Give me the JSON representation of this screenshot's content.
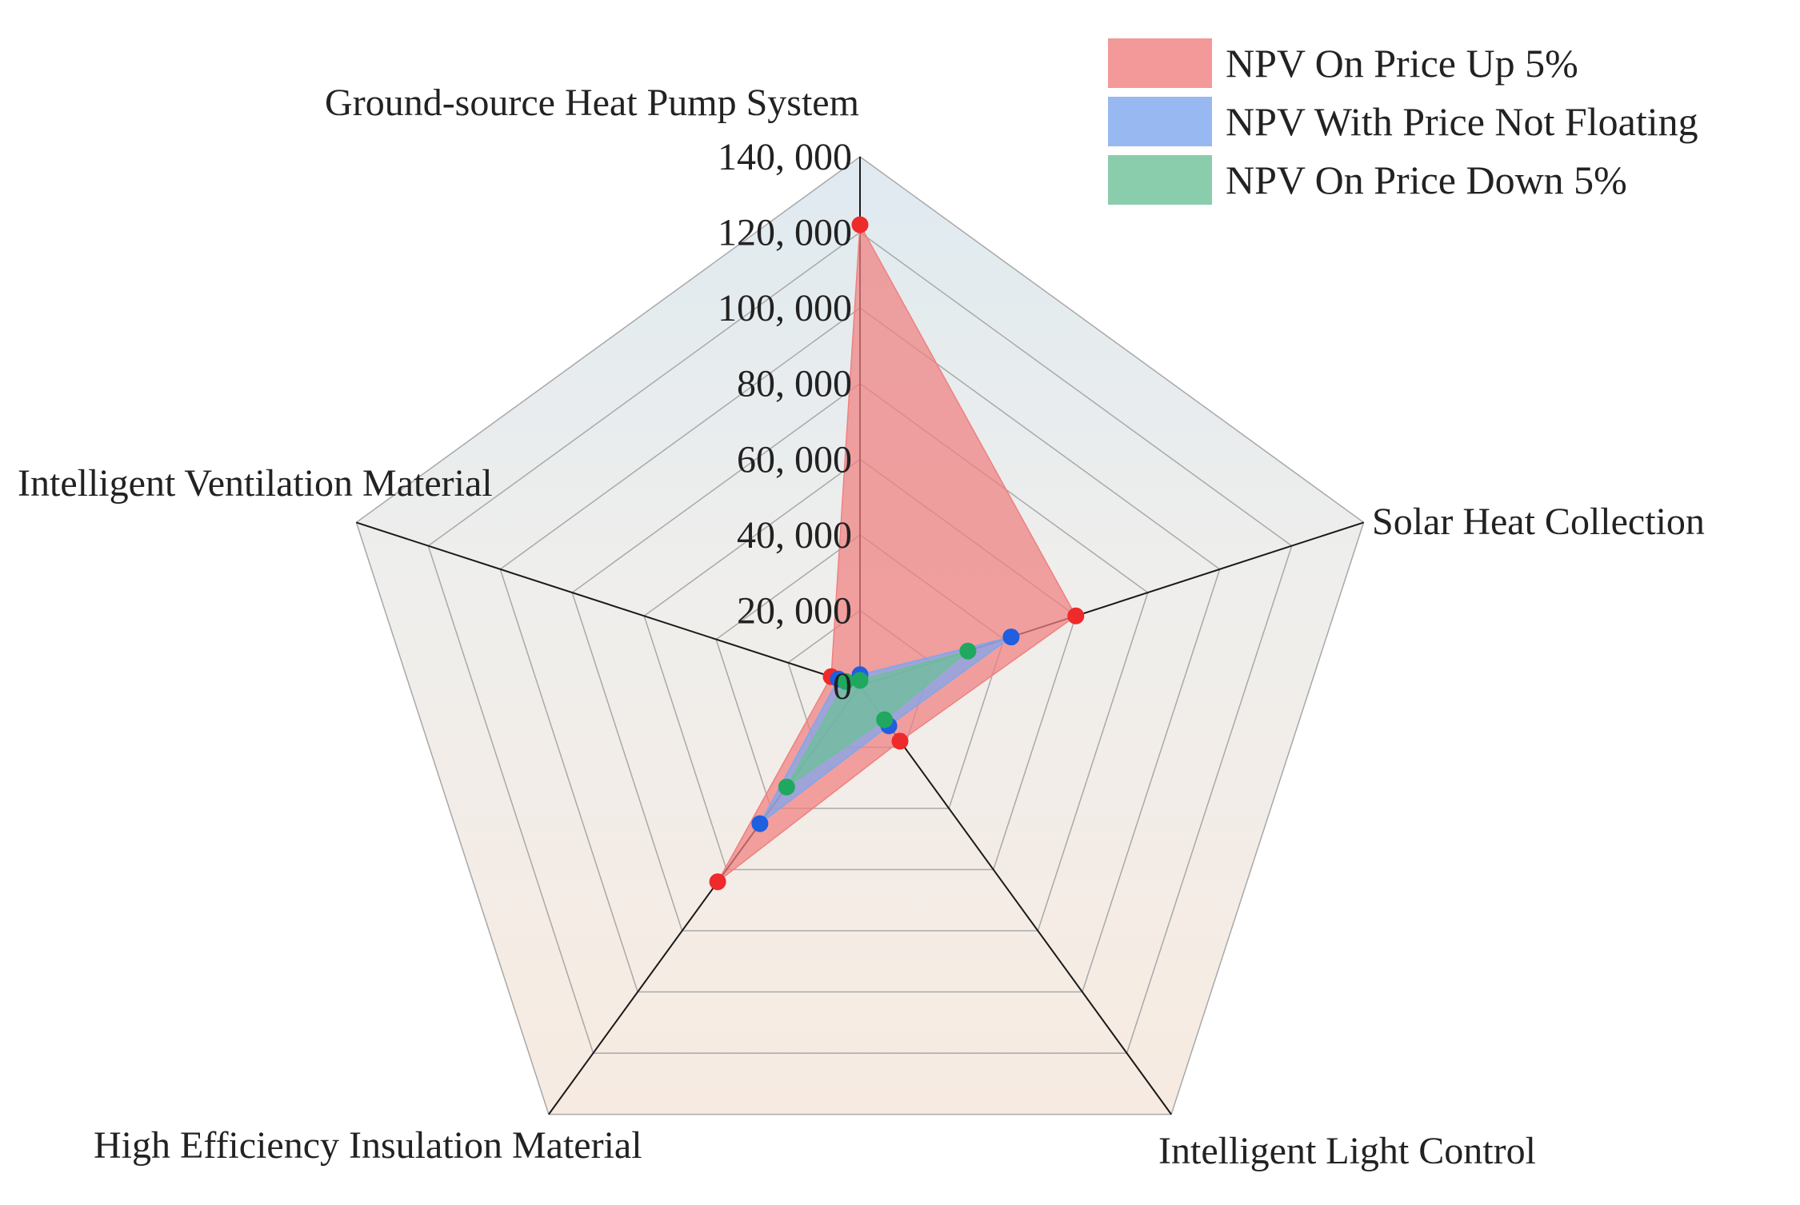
{
  "chart_data": {
    "type": "radar",
    "axes": [
      "Ground-source Heat Pump System",
      "Solar Heat Collection",
      "Intelligent Light Control",
      "High Efficiency Insulation Material",
      "Intelligent Ventilation Material"
    ],
    "radial_ticks": [
      "0",
      "20, 000",
      "40, 000",
      "60, 000",
      "80, 000",
      "100, 000",
      "120, 000",
      "140, 000"
    ],
    "radial_range": [
      0,
      140000
    ],
    "grid": true,
    "legend_position": "top-right",
    "series": [
      {
        "name": "NPV On Price Up 5%",
        "values": [
          122000,
          60000,
          18000,
          64000,
          8000
        ],
        "fill": "#f08080",
        "marker": "#ee2a2a"
      },
      {
        "name": "NPV With Price Not Floating",
        "values": [
          3000,
          42000,
          13000,
          45000,
          6000
        ],
        "fill": "#7ea6ef",
        "marker": "#1f5fe0"
      },
      {
        "name": "NPV On Price Down 5%",
        "values": [
          1500,
          30000,
          11000,
          33000,
          4000
        ],
        "fill": "#6cc197",
        "marker": "#20a860"
      }
    ]
  }
}
